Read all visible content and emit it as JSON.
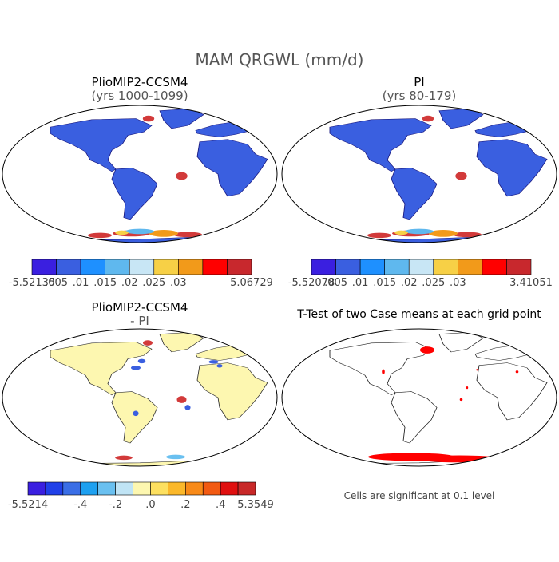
{
  "main_title": "MAM QRGWL (mm/d)",
  "colors": {
    "ocean": "#ffffff",
    "outline": "#000000",
    "land_blue": "#3a5fe0",
    "hot": "#d23a3a",
    "pale": "#fdf7b0",
    "signif": "#ff0000"
  },
  "panels": [
    {
      "title": "PlioMIP2-CCSM4",
      "subtitle": "(yrs 1000-1099)",
      "map": "absolute",
      "colorbar": {
        "colors": [
          "#3a1fe0",
          "#3a5fe0",
          "#1e90ff",
          "#5fb8ee",
          "#c8e6f5",
          "#f7d046",
          "#f29a1a",
          "#ff0000",
          "#c8282d"
        ],
        "labels": [
          "-5.52135",
          ".005",
          ".01",
          ".015",
          ".02",
          ".025",
          ".03",
          "5.06729"
        ]
      }
    },
    {
      "title": "PI",
      "subtitle": "(yrs 80-179)",
      "map": "absolute",
      "colorbar": {
        "colors": [
          "#3a1fe0",
          "#3a5fe0",
          "#1e90ff",
          "#5fb8ee",
          "#c8e6f5",
          "#f7d046",
          "#f29a1a",
          "#ff0000",
          "#c8282d"
        ],
        "labels": [
          "-5.52078",
          ".005",
          ".01",
          ".015",
          ".02",
          ".025",
          ".03",
          "3.41051"
        ]
      }
    },
    {
      "title": "PlioMIP2-CCSM4",
      "subtitle": "- PI",
      "map": "difference",
      "colorbar": {
        "colors": [
          "#3a1fe0",
          "#2040e8",
          "#3a6ee6",
          "#1ea0f0",
          "#6ac0f0",
          "#c0e4f5",
          "#fdf7b0",
          "#fde060",
          "#fbb82a",
          "#f88a18",
          "#f25a12",
          "#e01010",
          "#c82828"
        ],
        "labels": [
          "-5.5214",
          "-.4",
          "-.2",
          ".0",
          ".2",
          ".4",
          "5.3549"
        ]
      }
    },
    {
      "title": "T-Test of two Case means at each grid point",
      "subtitle": "",
      "map": "ttest",
      "footer": "Cells are significant at 0.1 level"
    }
  ]
}
